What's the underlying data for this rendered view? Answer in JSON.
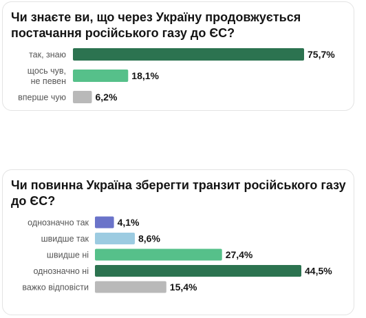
{
  "chart_data": [
    {
      "type": "bar",
      "orientation": "horizontal",
      "title": "Чи знаєте ви, що через Україну продовжується постачання російського газу до ЄС?",
      "categories": [
        [
          "так, знаю"
        ],
        [
          "щось чув,",
          "не певен"
        ],
        [
          "вперше чую"
        ]
      ],
      "values": [
        75.7,
        18.1,
        6.2
      ],
      "value_labels": [
        "75,7%",
        "18,1%",
        "6,2%"
      ],
      "colors": [
        "#2c7350",
        "#56c08a",
        "#b9b9b9"
      ],
      "xlim": [
        0,
        75.7
      ],
      "grid": false,
      "legend": "none"
    },
    {
      "type": "bar",
      "orientation": "horizontal",
      "title": "Чи повинна Україна зберегти транзит російського газу до ЄС?",
      "categories": [
        [
          "однозначно так"
        ],
        [
          "швидше так"
        ],
        [
          "швидше ні"
        ],
        [
          "однозначно ні"
        ],
        [
          "важко відповісти"
        ]
      ],
      "values": [
        4.1,
        8.6,
        27.4,
        44.5,
        15.4
      ],
      "value_labels": [
        "4,1%",
        "8,6%",
        "27,4%",
        "44,5%",
        "15,4%"
      ],
      "colors": [
        "#6a73c9",
        "#9ccbe1",
        "#56c08a",
        "#2c7350",
        "#b9b9b9"
      ],
      "xlim": [
        0,
        44.5
      ],
      "grid": false,
      "legend": "none"
    }
  ]
}
